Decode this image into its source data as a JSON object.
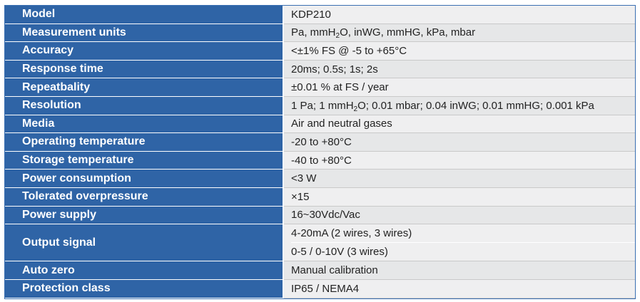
{
  "rows": [
    {
      "label": "Model",
      "value": "KDP210"
    },
    {
      "label": "Measurement units",
      "value_parts": [
        "Pa, mmH",
        "2",
        "O, inWG, mmHG, kPa, mbar"
      ]
    },
    {
      "label": "Accuracy",
      "value": "<±1% FS @ -5 to +65°C"
    },
    {
      "label": "Response time",
      "value": "20ms; 0.5s; 1s; 2s"
    },
    {
      "label": "Repeatbality",
      "value": "±0.01 % at FS / year"
    },
    {
      "label": "Resolution",
      "value_parts": [
        "1 Pa; 1 mmH",
        "2",
        "O; 0.01 mbar; 0.04 inWG; 0.01 mmHG; 0.001 kPa"
      ]
    },
    {
      "label": "Media",
      "value": "Air and neutral gases"
    },
    {
      "label": "Operating temperature",
      "value": "-20 to +80°C"
    },
    {
      "label": "Storage temperature",
      "value": "-40 to +80°C"
    },
    {
      "label": "Power consumption",
      "value": "<3 W"
    },
    {
      "label": "Tolerated overpressure",
      "value": "×15"
    },
    {
      "label": "Power supply",
      "value": "16~30Vdc/Vac"
    },
    {
      "label": "Output signal",
      "values": [
        "4-20mA (2 wires, 3 wires)",
        "0-5 / 0-10V (3 wires)"
      ]
    },
    {
      "label": "Auto zero",
      "value": "Manual calibration"
    },
    {
      "label": "Protection class",
      "value": "IP65 / NEMA4"
    }
  ],
  "colors": {
    "label_bg": "#2f64a6",
    "value_bg": "#efeff0",
    "border": "#3a6fb2"
  }
}
